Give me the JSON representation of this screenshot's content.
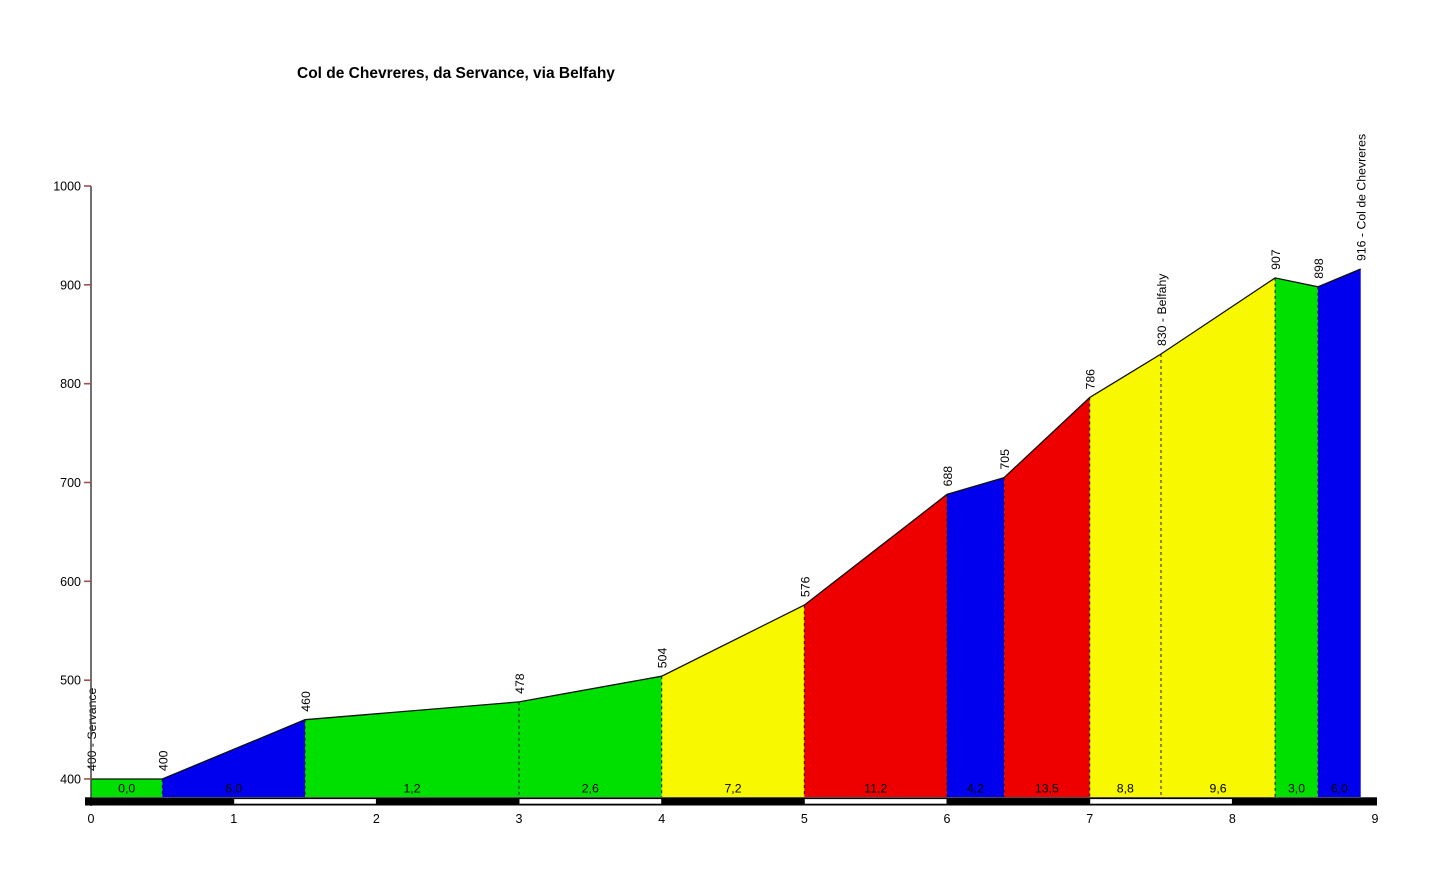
{
  "chart_data": {
    "type": "area",
    "title": "Col de Chevreres, da Servance, via Belfahy",
    "x_unit": "km",
    "y_unit": "m",
    "xlim": [
      0,
      9
    ],
    "ylim": [
      400,
      1000
    ],
    "x_ticks": [
      0,
      1,
      2,
      3,
      4,
      5,
      6,
      7,
      8,
      9
    ],
    "y_ticks": [
      400,
      500,
      600,
      700,
      800,
      900,
      1000
    ],
    "length_km": 8.9,
    "start_label": "400 - Servance",
    "summit_label": "916 - Col de Chevreres",
    "via_label": "830 - Belfahy",
    "checkpoints": [
      {
        "km": 0.0,
        "elevation": 400,
        "label": "400 - Servance"
      },
      {
        "km": 0.5,
        "elevation": 400,
        "label": "400"
      },
      {
        "km": 1.5,
        "elevation": 460,
        "label": "460"
      },
      {
        "km": 3.0,
        "elevation": 478,
        "label": "478"
      },
      {
        "km": 4.0,
        "elevation": 504,
        "label": "504"
      },
      {
        "km": 5.0,
        "elevation": 576,
        "label": "576"
      },
      {
        "km": 6.0,
        "elevation": 688,
        "label": "688"
      },
      {
        "km": 6.4,
        "elevation": 705,
        "label": "705"
      },
      {
        "km": 7.0,
        "elevation": 786,
        "label": "786"
      },
      {
        "km": 7.5,
        "elevation": 830,
        "label": "830 - Belfahy"
      },
      {
        "km": 8.3,
        "elevation": 907,
        "label": "907"
      },
      {
        "km": 8.6,
        "elevation": 898,
        "label": "898"
      },
      {
        "km": 8.9,
        "elevation": 916,
        "label": "916 - Col de Chevreres"
      }
    ],
    "segments": [
      {
        "from_km": 0.0,
        "to_km": 0.5,
        "gradient": "0,0",
        "color": "green"
      },
      {
        "from_km": 0.5,
        "to_km": 1.5,
        "gradient": "6,0",
        "color": "blue"
      },
      {
        "from_km": 1.5,
        "to_km": 3.0,
        "gradient": "1,2",
        "color": "green"
      },
      {
        "from_km": 3.0,
        "to_km": 4.0,
        "gradient": "2,6",
        "color": "green"
      },
      {
        "from_km": 4.0,
        "to_km": 5.0,
        "gradient": "7,2",
        "color": "yellow"
      },
      {
        "from_km": 5.0,
        "to_km": 6.0,
        "gradient": "11,2",
        "color": "red"
      },
      {
        "from_km": 6.0,
        "to_km": 6.4,
        "gradient": "4,2",
        "color": "blue"
      },
      {
        "from_km": 6.4,
        "to_km": 7.0,
        "gradient": "13,5",
        "color": "red"
      },
      {
        "from_km": 7.0,
        "to_km": 7.5,
        "gradient": "8,8",
        "color": "yellow"
      },
      {
        "from_km": 7.5,
        "to_km": 8.3,
        "gradient": "9,6",
        "color": "yellow"
      },
      {
        "from_km": 8.3,
        "to_km": 8.6,
        "gradient": "3,0",
        "color": "green"
      },
      {
        "from_km": 8.6,
        "to_km": 8.9,
        "gradient": "6,0",
        "color": "blue"
      }
    ],
    "palette": {
      "green": "#00E000",
      "blue": "#0000EE",
      "yellow": "#F8F800",
      "red": "#EE0000"
    },
    "axis_color": "#404040",
    "tick_color": "#A05050",
    "outline_color": "#101010",
    "km_scale_bar": {
      "interval_km": 1,
      "colors": [
        "#000000",
        "#FFFFFF"
      ]
    }
  }
}
